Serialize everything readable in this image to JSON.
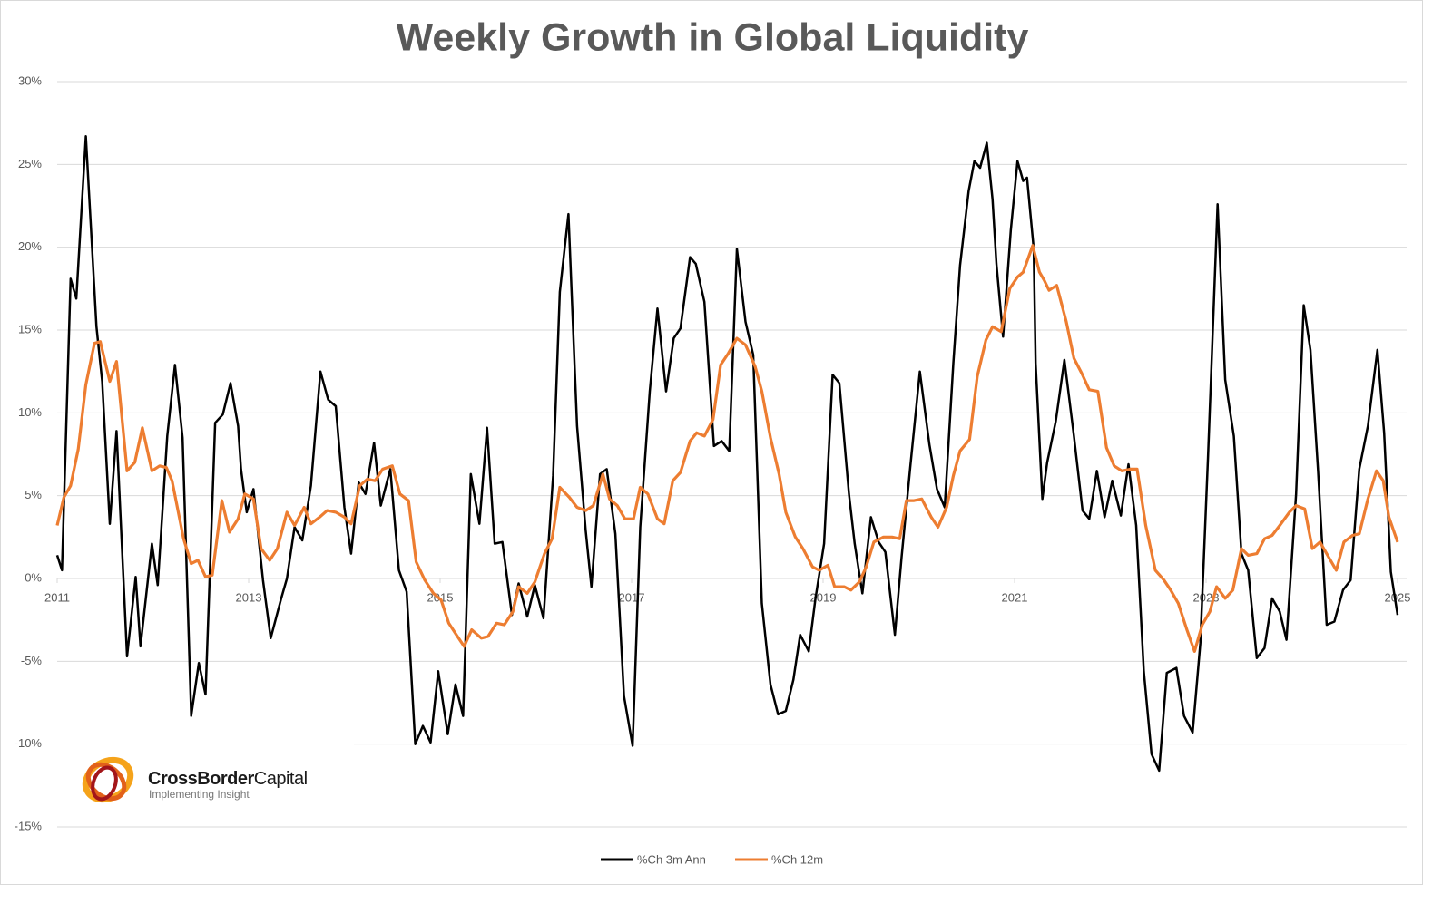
{
  "chart_data": {
    "type": "line",
    "title": "Weekly Growth in Global Liquidity",
    "xlim": [
      2011,
      2025
    ],
    "xticks": [
      2011,
      2013,
      2015,
      2017,
      2019,
      2021,
      2023,
      2025
    ],
    "ylim": [
      -15,
      30
    ],
    "yticks": [
      {
        "value": -15,
        "label": "-15%"
      },
      {
        "value": -10,
        "label": "-10%"
      },
      {
        "value": -5,
        "label": "-5%"
      },
      {
        "value": 0,
        "label": "0%"
      },
      {
        "value": 5,
        "label": "5%"
      },
      {
        "value": 10,
        "label": "10%"
      },
      {
        "value": 15,
        "label": "15%"
      },
      {
        "value": 20,
        "label": "20%"
      },
      {
        "value": 25,
        "label": "25%"
      },
      {
        "value": 30,
        "label": "30%"
      }
    ],
    "grid": true,
    "legend": "bottom",
    "series": [
      {
        "name": "%Ch 3m Ann",
        "color": "#000000",
        "x": [
          2011.0,
          2011.05,
          2011.14,
          2011.2,
          2011.3,
          2011.41,
          2011.47,
          2011.55,
          2011.62,
          2011.73,
          2011.82,
          2011.87,
          2011.99,
          2012.05,
          2012.15,
          2012.23,
          2012.31,
          2012.4,
          2012.48,
          2012.55,
          2012.65,
          2012.73,
          2012.81,
          2012.89,
          2012.92,
          2012.98,
          2013.05,
          2013.15,
          2013.23,
          2013.34,
          2013.4,
          2013.48,
          2013.56,
          2013.65,
          2013.75,
          2013.83,
          2013.91,
          2014.0,
          2014.07,
          2014.15,
          2014.22,
          2014.31,
          2014.38,
          2014.48,
          2014.57,
          2014.65,
          2014.74,
          2014.82,
          2014.9,
          2014.98,
          2015.08,
          2015.16,
          2015.24,
          2015.32,
          2015.41,
          2015.49,
          2015.57,
          2015.65,
          2015.75,
          2015.82,
          2015.91,
          2015.99,
          2016.08,
          2016.18,
          2016.25,
          2016.34,
          2016.43,
          2016.52,
          2016.58,
          2016.67,
          2016.74,
          2016.83,
          2016.92,
          2017.01,
          2017.09,
          2017.19,
          2017.27,
          2017.36,
          2017.44,
          2017.51,
          2017.61,
          2017.67,
          2017.76,
          2017.86,
          2017.94,
          2018.02,
          2018.1,
          2018.19,
          2018.27,
          2018.36,
          2018.45,
          2018.53,
          2018.61,
          2018.69,
          2018.76,
          2018.85,
          2018.92,
          2019.01,
          2019.1,
          2019.17,
          2019.27,
          2019.33,
          2019.41,
          2019.5,
          2019.58,
          2019.65,
          2019.75,
          2019.82,
          2019.91,
          2020.01,
          2020.11,
          2020.19,
          2020.27,
          2020.36,
          2020.43,
          2020.52,
          2020.58,
          2020.64,
          2020.71,
          2020.77,
          2020.81,
          2020.88,
          2020.96,
          2021.03,
          2021.09,
          2021.13,
          2021.2,
          2021.22,
          2021.29,
          2021.34,
          2021.43,
          2021.52,
          2021.62,
          2021.71,
          2021.78,
          2021.86,
          2021.94,
          2022.02,
          2022.11,
          2022.19,
          2022.27,
          2022.35,
          2022.43,
          2022.51,
          2022.59,
          2022.69,
          2022.77,
          2022.86,
          2022.94,
          2023.02,
          2023.12,
          2023.2,
          2023.29,
          2023.37,
          2023.44,
          2023.53,
          2023.61,
          2023.69,
          2023.77,
          2023.84,
          2023.94,
          2024.02,
          2024.09,
          2024.17,
          2024.26,
          2024.34,
          2024.43,
          2024.51,
          2024.6,
          2024.69,
          2024.79,
          2024.86,
          2024.93,
          2025.0
        ],
        "values": [
          1.4,
          0.5,
          18.1,
          16.9,
          26.7,
          15.2,
          11.9,
          3.3,
          8.9,
          -4.7,
          0.1,
          -4.1,
          2.1,
          -0.4,
          8.6,
          12.9,
          8.5,
          -8.3,
          -5.1,
          -7.0,
          9.4,
          9.9,
          11.8,
          9.2,
          6.6,
          4.0,
          5.4,
          -0.1,
          -3.6,
          -1.2,
          0.0,
          3.1,
          2.3,
          5.6,
          12.5,
          10.8,
          10.4,
          4.3,
          1.5,
          5.8,
          5.1,
          8.2,
          4.4,
          6.6,
          0.5,
          -0.8,
          -10.0,
          -8.9,
          -9.9,
          -5.6,
          -9.4,
          -6.4,
          -8.3,
          6.3,
          3.3,
          9.1,
          2.1,
          2.2,
          -2.2,
          -0.3,
          -2.3,
          -0.4,
          -2.4,
          6.2,
          17.3,
          22.0,
          9.2,
          2.9,
          -0.5,
          6.3,
          6.6,
          2.7,
          -7.1,
          -10.1,
          3.1,
          11.3,
          16.3,
          11.3,
          14.5,
          15.1,
          19.4,
          19.0,
          16.7,
          8.0,
          8.3,
          7.7,
          19.9,
          15.5,
          13.5,
          -1.5,
          -6.4,
          -8.2,
          -8.0,
          -6.1,
          -3.4,
          -4.4,
          -1.2,
          2.1,
          12.3,
          11.8,
          5.1,
          2.1,
          -0.9,
          3.7,
          2.2,
          1.6,
          -3.4,
          1.3,
          6.7,
          12.5,
          8.1,
          5.4,
          4.3,
          13.0,
          18.9,
          23.4,
          25.2,
          24.8,
          26.3,
          22.9,
          19.0,
          14.6,
          21.0,
          25.2,
          24.0,
          24.2,
          19.9,
          13.0,
          4.8,
          7.0,
          9.5,
          13.2,
          8.6,
          4.1,
          3.6,
          6.5,
          3.7,
          5.9,
          3.8,
          6.9,
          3.2,
          -5.6,
          -10.6,
          -11.6,
          -5.7,
          -5.4,
          -8.3,
          -9.3,
          -3.9,
          7.3,
          22.6,
          12.0,
          8.6,
          1.5,
          0.5,
          -4.8,
          -4.2,
          -1.2,
          -2.0,
          -3.7,
          5.1,
          16.5,
          13.8,
          6.5,
          -2.8,
          -2.6,
          -0.7,
          -0.1,
          6.6,
          9.2,
          13.8,
          8.8,
          0.4,
          -2.2
        ]
      },
      {
        "name": "%Ch 12m",
        "color": "#ed7d31",
        "x": [
          2011.0,
          2011.07,
          2011.14,
          2011.22,
          2011.3,
          2011.39,
          2011.45,
          2011.55,
          2011.62,
          2011.73,
          2011.81,
          2011.89,
          2011.99,
          2012.07,
          2012.14,
          2012.2,
          2012.32,
          2012.4,
          2012.47,
          2012.55,
          2012.62,
          2012.72,
          2012.8,
          2012.89,
          2012.96,
          2013.05,
          2013.13,
          2013.22,
          2013.3,
          2013.4,
          2013.48,
          2013.58,
          2013.65,
          2013.74,
          2013.82,
          2013.91,
          2014.0,
          2014.07,
          2014.16,
          2014.24,
          2014.32,
          2014.4,
          2014.5,
          2014.58,
          2014.67,
          2014.75,
          2014.84,
          2014.93,
          2015.01,
          2015.09,
          2015.17,
          2015.25,
          2015.33,
          2015.43,
          2015.5,
          2015.59,
          2015.67,
          2015.76,
          2015.82,
          2015.91,
          2015.99,
          2016.09,
          2016.17,
          2016.25,
          2016.35,
          2016.43,
          2016.52,
          2016.6,
          2016.7,
          2016.77,
          2016.85,
          2016.93,
          2017.02,
          2017.09,
          2017.17,
          2017.27,
          2017.34,
          2017.43,
          2017.51,
          2017.61,
          2017.68,
          2017.76,
          2017.85,
          2017.93,
          2018.01,
          2018.1,
          2018.19,
          2018.29,
          2018.36,
          2018.45,
          2018.54,
          2018.61,
          2018.71,
          2018.79,
          2018.89,
          2018.96,
          2019.05,
          2019.12,
          2019.22,
          2019.29,
          2019.38,
          2019.45,
          2019.53,
          2019.63,
          2019.72,
          2019.8,
          2019.87,
          2019.95,
          2020.03,
          2020.13,
          2020.2,
          2020.29,
          2020.36,
          2020.43,
          2020.53,
          2020.61,
          2020.7,
          2020.77,
          2020.86,
          2020.95,
          2021.03,
          2021.09,
          2021.19,
          2021.26,
          2021.31,
          2021.36,
          2021.44,
          2021.54,
          2021.62,
          2021.7,
          2021.78,
          2021.87,
          2021.96,
          2022.04,
          2022.12,
          2022.21,
          2022.28,
          2022.37,
          2022.47,
          2022.56,
          2022.63,
          2022.71,
          2022.8,
          2022.88,
          2022.96,
          2023.04,
          2023.11,
          2023.2,
          2023.28,
          2023.37,
          2023.44,
          2023.53,
          2023.61,
          2023.69,
          2023.77,
          2023.87,
          2023.94,
          2024.03,
          2024.11,
          2024.19,
          2024.28,
          2024.36,
          2024.44,
          2024.53,
          2024.6,
          2024.69,
          2024.78,
          2024.85,
          2024.91,
          2025.0
        ],
        "values": [
          3.2,
          4.9,
          5.6,
          7.8,
          11.7,
          14.2,
          14.3,
          11.9,
          13.1,
          6.5,
          7.0,
          9.1,
          6.5,
          6.8,
          6.7,
          5.9,
          2.4,
          0.9,
          1.1,
          0.1,
          0.2,
          4.7,
          2.8,
          3.6,
          5.1,
          4.8,
          1.8,
          1.1,
          1.8,
          4.0,
          3.2,
          4.3,
          3.3,
          3.7,
          4.1,
          4.0,
          3.7,
          3.3,
          5.6,
          6.0,
          5.9,
          6.6,
          6.8,
          5.1,
          4.7,
          1.0,
          -0.1,
          -0.9,
          -1.3,
          -2.7,
          -3.4,
          -4.1,
          -3.1,
          -3.6,
          -3.5,
          -2.7,
          -2.8,
          -2.0,
          -0.5,
          -0.9,
          -0.2,
          1.5,
          2.4,
          5.5,
          4.9,
          4.3,
          4.1,
          4.4,
          6.3,
          4.8,
          4.4,
          3.6,
          3.6,
          5.5,
          5.1,
          3.6,
          3.3,
          5.9,
          6.4,
          8.3,
          8.8,
          8.6,
          9.6,
          12.9,
          13.6,
          14.5,
          14.1,
          12.8,
          11.3,
          8.5,
          6.3,
          4.0,
          2.5,
          1.8,
          0.7,
          0.5,
          0.8,
          -0.5,
          -0.5,
          -0.7,
          -0.2,
          0.7,
          2.2,
          2.5,
          2.5,
          2.4,
          4.7,
          4.7,
          4.8,
          3.7,
          3.1,
          4.3,
          6.2,
          7.7,
          8.4,
          12.2,
          14.4,
          15.2,
          14.9,
          17.5,
          18.2,
          18.5,
          20.1,
          18.5,
          18.0,
          17.4,
          17.7,
          15.5,
          13.3,
          12.4,
          11.4,
          11.3,
          7.9,
          6.8,
          6.5,
          6.6,
          6.6,
          3.2,
          0.5,
          -0.1,
          -0.7,
          -1.5,
          -3.1,
          -4.4,
          -2.8,
          -2.0,
          -0.5,
          -1.2,
          -0.7,
          1.8,
          1.4,
          1.5,
          2.4,
          2.6,
          3.2,
          4.0,
          4.4,
          4.2,
          1.8,
          2.2,
          1.3,
          0.5,
          2.2,
          2.6,
          2.7,
          4.8,
          6.5,
          5.9,
          3.7,
          2.2
        ]
      }
    ]
  },
  "logo": {
    "name_bold": "CrossBorder",
    "name_regular": "Capital",
    "tagline": "Implementing Insight"
  }
}
